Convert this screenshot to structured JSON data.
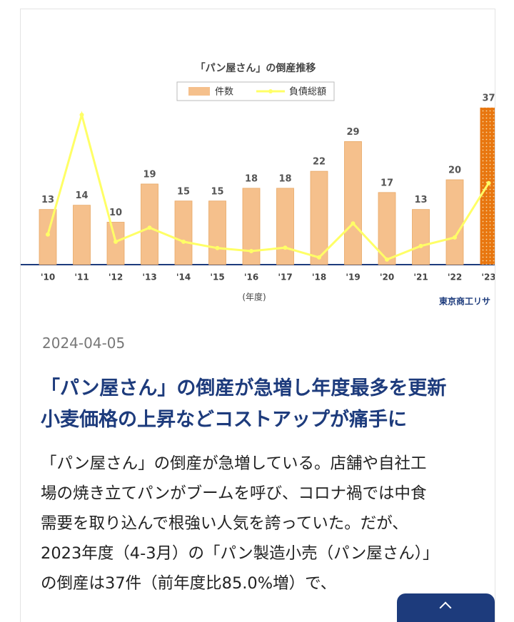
{
  "article": {
    "date": "2024-04-05",
    "title_lines": [
      "「パン屋さん」の倒産が急増し年度最多を更新",
      "小麦価格の上昇などコストアップが痛手に"
    ],
    "body_lines": [
      "「パン屋さん」の倒産が急増している。店舗や自社工",
      "場の焼き立てパンがブームを呼び、コロナ禍では中食",
      "需要を取り込んで根強い人気を誇っていた。だが、",
      "2023年度（4-3月）の「パン製造小売（パン屋さん）」",
      "の倒産は37件（前年度比85.0%増）で、"
    ]
  },
  "chart_data": {
    "type": "bar-line",
    "title": "「パン屋さん」の倒産推移",
    "xlabel": "(年度)",
    "source": "東京商工リサ",
    "categories": [
      "'10",
      "'11",
      "'12",
      "'13",
      "'14",
      "'15",
      "'16",
      "'17",
      "'18",
      "'19",
      "'20",
      "'21",
      "'22",
      "'23"
    ],
    "series": [
      {
        "name": "件数",
        "type": "bar",
        "color": "#f5c08c",
        "highlight_color": "#e8760f",
        "values": [
          13,
          14,
          10,
          19,
          15,
          15,
          18,
          18,
          22,
          29,
          17,
          13,
          20,
          37
        ]
      },
      {
        "name": "負債総額",
        "type": "line",
        "color": "#ffff66",
        "values": [
          7.1,
          35.3,
          5.4,
          8.7,
          5.4,
          3.9,
          3.2,
          4.0,
          1.7,
          9.7,
          1.2,
          4.4,
          6.4,
          19.2
        ]
      }
    ],
    "ylim": [
      0,
      40
    ]
  }
}
